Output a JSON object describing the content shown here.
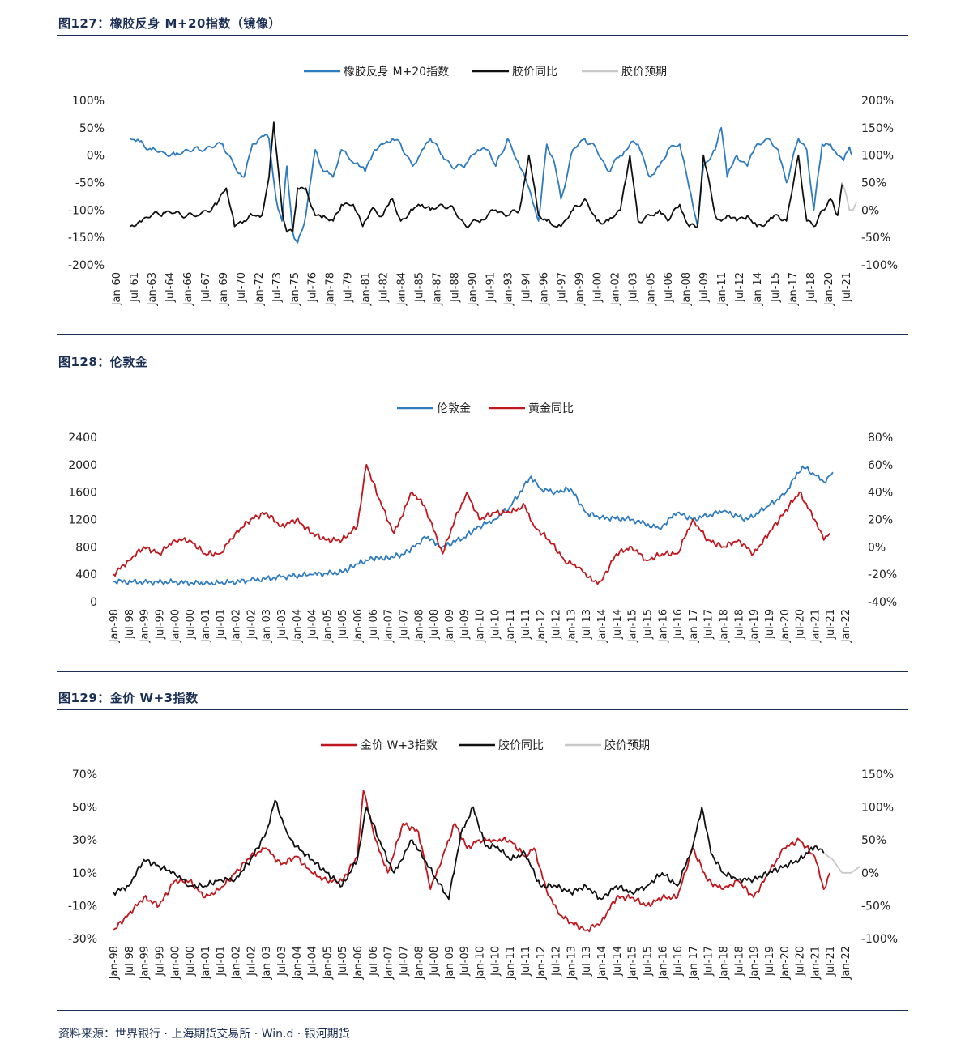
{
  "footer": {
    "source": "资料来源：世界银行 · 上海期货交易所 · Win.d · 银河期货"
  },
  "colors": {
    "blue": "#2f7bbf",
    "black": "#111111",
    "gray": "#c8c8c8",
    "red": "#c0161e",
    "rule": "#1b2f55"
  },
  "chart_data": [
    {
      "type": "line",
      "title": "图127：橡胶反身 M+20指数（镜像）",
      "ylim": [
        -200,
        100
      ],
      "y2lim": [
        -100,
        200
      ],
      "yticks": [
        "100%",
        "50%",
        "0%",
        "-50%",
        "-100%",
        "-150%",
        "-200%"
      ],
      "y2ticks": [
        "200%",
        "150%",
        "100%",
        "50%",
        "0%",
        "-50%",
        "-100%"
      ],
      "xticks": [
        "Jan-60",
        "Jul-61",
        "Jan-63",
        "Jul-64",
        "Jan-66",
        "Jul-67",
        "Jan-69",
        "Jul-70",
        "Jan-72",
        "Jul-73",
        "Jan-75",
        "Jul-76",
        "Jan-78",
        "Jul-79",
        "Jan-81",
        "Jul-82",
        "Jan-84",
        "Jul-85",
        "Jan-87",
        "Jul-88",
        "Jan-90",
        "Jul-91",
        "Jan-93",
        "Jul-94",
        "Jan-96",
        "Jul-97",
        "Jan-99",
        "Jul-00",
        "Jan-02",
        "Jul-03",
        "Jan-05",
        "Jul-06",
        "Jan-08",
        "Jul-09",
        "Jan-11",
        "Jul-12",
        "Jan-14",
        "Jul-15",
        "Jan-17",
        "Jul-18",
        "Jan-20",
        "Jul-21"
      ],
      "legend": [
        "橡胶反身 M+20指数",
        "胶价同比",
        "胶价预期"
      ],
      "series": [
        {
          "name": "橡胶反身 M+20指数",
          "axis": "left",
          "color": "#2f7bbf",
          "x": [
            1961.2,
            1962.0,
            1963.0,
            1964.0,
            1965.0,
            1966.0,
            1967.0,
            1968.0,
            1969.0,
            1970.0,
            1970.8,
            1971.5,
            1972.3,
            1972.9,
            1973.5,
            1974.0,
            1974.4,
            1974.9,
            1975.3,
            1976.0,
            1976.8,
            1977.5,
            1978.3,
            1979.0,
            1979.8,
            1980.5,
            1981.0,
            1981.8,
            1982.5,
            1983.3,
            1984.0,
            1985.0,
            1985.8,
            1986.5,
            1987.5,
            1988.5,
            1989.5,
            1990.5,
            1991.3,
            1992.0,
            1993.0,
            1994.0,
            1994.8,
            1995.6,
            1996.3,
            1997.0,
            1997.5,
            1998.5,
            1999.5,
            2000.5,
            2001.5,
            2002.5,
            2003.3,
            2004.0,
            2005.0,
            2005.8,
            2006.5,
            2007.5,
            2008.3,
            2009.0,
            2009.5,
            2010.5,
            2011.0,
            2011.5,
            2012.3,
            2013.2,
            2014.0,
            2015.0,
            2015.8,
            2016.5,
            2017.5,
            2018.2,
            2018.8,
            2019.5,
            2020.2,
            2020.8,
            2021.3,
            2021.8,
            2022.0
          ],
          "values": [
            30,
            25,
            10,
            5,
            0,
            10,
            10,
            15,
            20,
            -20,
            -40,
            20,
            35,
            30,
            -80,
            -120,
            -20,
            -140,
            -160,
            -110,
            10,
            -30,
            -40,
            10,
            -10,
            -20,
            -30,
            10,
            20,
            30,
            20,
            -20,
            10,
            30,
            0,
            -25,
            -15,
            10,
            10,
            -20,
            30,
            -20,
            -60,
            -120,
            20,
            -20,
            -80,
            10,
            30,
            10,
            -30,
            0,
            20,
            20,
            -40,
            -20,
            10,
            20,
            -60,
            -130,
            -20,
            10,
            50,
            -40,
            0,
            -20,
            20,
            30,
            10,
            -50,
            30,
            10,
            -100,
            20,
            20,
            0,
            -10,
            15,
            0
          ]
        },
        {
          "name": "胶价同比",
          "axis": "right",
          "color": "#111111",
          "x": [
            1961.2,
            1962.0,
            1963.0,
            1964.0,
            1965.0,
            1966.0,
            1967.0,
            1968.5,
            1969.3,
            1970.0,
            1970.8,
            1971.5,
            1972.3,
            1972.9,
            1973.3,
            1974.0,
            1974.4,
            1974.9,
            1975.3,
            1976.0,
            1976.8,
            1977.5,
            1978.3,
            1979.0,
            1980.0,
            1980.8,
            1981.5,
            1982.5,
            1983.3,
            1984.0,
            1985.0,
            1985.8,
            1986.5,
            1987.5,
            1988.5,
            1989.5,
            1990.5,
            1991.3,
            1992.0,
            1993.0,
            1994.0,
            1994.8,
            1995.6,
            1996.3,
            1997.0,
            1997.5,
            1998.5,
            1999.5,
            2000.5,
            2001.5,
            2002.5,
            2003.3,
            2004.0,
            2005.0,
            2005.8,
            2006.5,
            2007.5,
            2008.3,
            2009.0,
            2009.5,
            2010.5,
            2011.0,
            2011.5,
            2012.3,
            2013.2,
            2014.0,
            2015.0,
            2015.8,
            2016.5,
            2017.5,
            2018.2,
            2018.8,
            2019.5,
            2020.2,
            2020.8,
            2021.2
          ],
          "values": [
            -30,
            -20,
            -10,
            -5,
            -5,
            -10,
            -10,
            10,
            40,
            -30,
            -20,
            -10,
            -10,
            60,
            160,
            0,
            -40,
            -40,
            40,
            40,
            -10,
            -10,
            -20,
            10,
            10,
            -30,
            0,
            -10,
            20,
            -20,
            0,
            10,
            0,
            10,
            0,
            -30,
            -20,
            -10,
            0,
            -10,
            0,
            100,
            -10,
            -20,
            -30,
            -30,
            0,
            20,
            -20,
            -20,
            0,
            100,
            -20,
            -10,
            0,
            -20,
            10,
            -30,
            -30,
            100,
            -10,
            -20,
            -10,
            -20,
            -10,
            -30,
            -20,
            -10,
            -20,
            100,
            -20,
            -30,
            0,
            20,
            -10,
            50
          ]
        },
        {
          "name": "胶价预期",
          "axis": "right",
          "color": "#c8c8c8",
          "x": [
            2021.2,
            2021.5,
            2021.8,
            2022.1,
            2022.4
          ],
          "values": [
            50,
            30,
            0,
            0,
            15
          ]
        }
      ]
    },
    {
      "type": "line",
      "title": "图128：伦敦金",
      "ylim": [
        0,
        2400
      ],
      "y2lim": [
        -40,
        80
      ],
      "yticks": [
        "2400",
        "2000",
        "1600",
        "1200",
        "800",
        "400",
        "0"
      ],
      "y2ticks": [
        "80%",
        "60%",
        "40%",
        "20%",
        "0%",
        "-20%",
        "-40%"
      ],
      "xticks": [
        "Jan-98",
        "Jul-98",
        "Jan-99",
        "Jul-99",
        "Jan-00",
        "Jul-00",
        "Jan-01",
        "Jul-01",
        "Jan-02",
        "Jul-02",
        "Jan-03",
        "Jul-03",
        "Jan-04",
        "Jul-04",
        "Jan-05",
        "Jul-05",
        "Jan-06",
        "Jul-06",
        "Jan-07",
        "Jul-07",
        "Jan-08",
        "Jul-08",
        "Jan-09",
        "Jul-09",
        "Jan-10",
        "Jul-10",
        "Jan-11",
        "Jul-11",
        "Jan-12",
        "Jul-12",
        "Jan-13",
        "Jul-13",
        "Jan-14",
        "Jul-14",
        "Jan-15",
        "Jul-15",
        "Jan-16",
        "Jul-16",
        "Jan-17",
        "Jul-17",
        "Jan-18",
        "Jul-18",
        "Jan-19",
        "Jul-19",
        "Jan-20",
        "Jul-20",
        "Jan-21",
        "Jul-21",
        "Jan-22"
      ],
      "legend": [
        "伦敦金",
        "黄金同比"
      ],
      "series": [
        {
          "name": "伦敦金",
          "axis": "left",
          "color": "#2f7bbf",
          "x": [
            1998.0,
            1999.0,
            2000.0,
            2001.0,
            2001.5,
            2002.5,
            2003.5,
            2004.5,
            2005.5,
            2006.0,
            2006.5,
            2007.0,
            2007.5,
            2008.0,
            2008.2,
            2008.8,
            2009.5,
            2010.0,
            2010.5,
            2011.0,
            2011.7,
            2012.0,
            2012.5,
            2013.0,
            2013.5,
            2014.0,
            2015.0,
            2015.9,
            2016.5,
            2017.0,
            2018.0,
            2018.8,
            2019.5,
            2020.0,
            2020.6,
            2021.0,
            2021.3,
            2021.6
          ],
          "values": [
            295,
            285,
            285,
            265,
            270,
            310,
            360,
            395,
            430,
            550,
            630,
            640,
            690,
            850,
            950,
            800,
            940,
            1100,
            1200,
            1380,
            1830,
            1650,
            1600,
            1650,
            1300,
            1230,
            1200,
            1070,
            1300,
            1200,
            1320,
            1200,
            1400,
            1560,
            1980,
            1850,
            1750,
            1890
          ]
        },
        {
          "name": "黄金同比",
          "axis": "right",
          "color": "#c0161e",
          "x": [
            1998.0,
            1998.5,
            1999.0,
            1999.5,
            2000.0,
            2000.5,
            2001.0,
            2001.5,
            2002.0,
            2002.5,
            2003.0,
            2003.5,
            2004.0,
            2004.5,
            2005.0,
            2005.5,
            2006.0,
            2006.3,
            2006.8,
            2007.2,
            2007.8,
            2008.2,
            2008.8,
            2009.2,
            2009.6,
            2010.0,
            2010.5,
            2011.0,
            2011.5,
            2011.8,
            2012.3,
            2012.8,
            2013.3,
            2013.7,
            2014.0,
            2014.5,
            2015.0,
            2015.5,
            2016.0,
            2016.5,
            2017.0,
            2017.5,
            2018.0,
            2018.5,
            2019.0,
            2019.5,
            2020.0,
            2020.5,
            2021.0,
            2021.3,
            2021.5
          ],
          "values": [
            -20,
            -10,
            0,
            -5,
            5,
            5,
            -5,
            -5,
            10,
            20,
            25,
            15,
            20,
            10,
            5,
            5,
            15,
            60,
            30,
            10,
            40,
            30,
            -5,
            20,
            40,
            20,
            25,
            25,
            30,
            15,
            5,
            -10,
            -15,
            -25,
            -25,
            -5,
            0,
            -10,
            -5,
            -5,
            20,
            5,
            0,
            5,
            -5,
            10,
            25,
            40,
            20,
            5,
            10
          ]
        }
      ]
    },
    {
      "type": "line",
      "title": "图129：金价 W+3指数",
      "ylim": [
        -30,
        70
      ],
      "y2lim": [
        -100,
        150
      ],
      "yticks": [
        "70%",
        "50%",
        "30%",
        "10%",
        "-10%",
        "-30%"
      ],
      "y2ticks": [
        "150%",
        "100%",
        "50%",
        "0%",
        "-50%",
        "-100%"
      ],
      "xticks": [
        "Jan-98",
        "Jul-98",
        "Jan-99",
        "Jul-99",
        "Jan-00",
        "Jul-00",
        "Jan-01",
        "Jul-01",
        "Jan-02",
        "Jul-02",
        "Jan-03",
        "Jul-03",
        "Jan-04",
        "Jul-04",
        "Jan-05",
        "Jul-05",
        "Jan-06",
        "Jul-06",
        "Jan-07",
        "Jul-07",
        "Jan-08",
        "Jul-08",
        "Jan-09",
        "Jul-09",
        "Jan-10",
        "Jul-10",
        "Jan-11",
        "Jul-11",
        "Jan-12",
        "Jul-12",
        "Jan-13",
        "Jul-13",
        "Jan-14",
        "Jul-14",
        "Jan-15",
        "Jul-15",
        "Jan-16",
        "Jul-16",
        "Jan-17",
        "Jul-17",
        "Jan-18",
        "Jul-18",
        "Jan-19",
        "Jul-19",
        "Jan-20",
        "Jul-20",
        "Jan-21",
        "Jul-21",
        "Jan-22"
      ],
      "legend": [
        "金价 W+3指数",
        "胶价同比",
        "胶价预期"
      ],
      "series": [
        {
          "name": "金价 W+3指数",
          "axis": "left",
          "color": "#c0161e",
          "x": [
            1998.0,
            1998.5,
            1999.0,
            1999.5,
            2000.0,
            2000.5,
            2001.0,
            2001.5,
            2002.0,
            2002.5,
            2003.0,
            2003.5,
            2004.0,
            2004.5,
            2005.0,
            2005.5,
            2006.0,
            2006.2,
            2006.6,
            2007.0,
            2007.5,
            2008.0,
            2008.4,
            2008.8,
            2009.2,
            2009.6,
            2010.0,
            2010.5,
            2011.0,
            2011.5,
            2011.8,
            2012.2,
            2012.6,
            2013.0,
            2013.5,
            2014.0,
            2014.5,
            2015.0,
            2015.5,
            2016.0,
            2016.5,
            2017.0,
            2017.5,
            2018.0,
            2018.5,
            2019.0,
            2019.5,
            2020.0,
            2020.5,
            2021.0,
            2021.3,
            2021.5
          ],
          "values": [
            -25,
            -15,
            -5,
            -10,
            5,
            5,
            -5,
            0,
            10,
            20,
            25,
            15,
            20,
            10,
            5,
            5,
            20,
            60,
            30,
            10,
            40,
            35,
            0,
            20,
            40,
            25,
            30,
            30,
            30,
            20,
            25,
            0,
            -15,
            -20,
            -25,
            -20,
            -5,
            -5,
            -10,
            -5,
            -5,
            25,
            5,
            0,
            5,
            -5,
            10,
            25,
            30,
            20,
            0,
            10
          ]
        },
        {
          "name": "胶价同比",
          "axis": "right",
          "color": "#111111",
          "x": [
            1998.0,
            1998.5,
            1999.0,
            1999.5,
            2000.0,
            2000.5,
            2001.0,
            2001.5,
            2002.0,
            2002.5,
            2003.0,
            2003.3,
            2003.7,
            2004.0,
            2004.5,
            2005.0,
            2005.5,
            2006.0,
            2006.3,
            2006.8,
            2007.2,
            2007.8,
            2008.2,
            2008.6,
            2009.0,
            2009.4,
            2009.8,
            2010.2,
            2010.6,
            2011.0,
            2011.5,
            2012.0,
            2012.5,
            2013.0,
            2013.5,
            2014.0,
            2014.5,
            2015.0,
            2015.5,
            2016.0,
            2016.5,
            2017.0,
            2017.3,
            2017.6,
            2018.0,
            2018.5,
            2019.0,
            2019.5,
            2020.0,
            2020.5,
            2021.0,
            2021.3
          ],
          "values": [
            -30,
            -20,
            20,
            10,
            0,
            -20,
            -20,
            -10,
            -10,
            20,
            60,
            110,
            60,
            40,
            20,
            0,
            -20,
            20,
            100,
            40,
            0,
            50,
            20,
            -10,
            -40,
            60,
            100,
            40,
            40,
            20,
            30,
            -20,
            -20,
            -30,
            -20,
            -40,
            -20,
            -30,
            -20,
            0,
            -20,
            40,
            100,
            30,
            0,
            -10,
            -10,
            0,
            10,
            20,
            40,
            30
          ]
        },
        {
          "name": "胶价预期",
          "axis": "right",
          "color": "#c8c8c8",
          "x": [
            2021.3,
            2021.6,
            2021.9,
            2022.2,
            2022.5
          ],
          "values": [
            30,
            20,
            0,
            0,
            10
          ]
        }
      ]
    }
  ]
}
